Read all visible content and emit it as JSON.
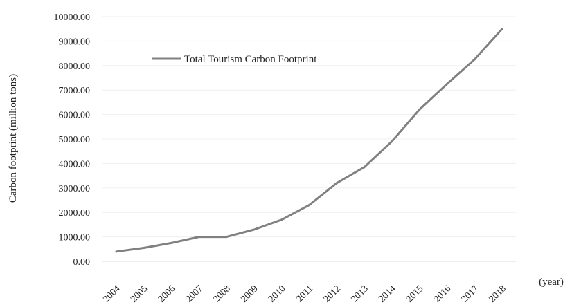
{
  "chart_data": {
    "type": "line",
    "title": "",
    "xlabel": "(year)",
    "ylabel": "Carbon footprint (million tons)",
    "categories": [
      "2004",
      "2005",
      "2006",
      "2007",
      "2008",
      "2009",
      "2010",
      "2011",
      "2012",
      "2013",
      "2014",
      "2015",
      "2016",
      "2017",
      "2018"
    ],
    "ytick_labels": [
      "0.00",
      "1000.00",
      "2000.00",
      "3000.00",
      "4000.00",
      "5000.00",
      "6000.00",
      "7000.00",
      "8000.00",
      "9000.00",
      "10000.00"
    ],
    "ylim": [
      0,
      10000
    ],
    "grid": true,
    "legend_position": "top-left",
    "series": [
      {
        "name": "Total Tourism Carbon Footprint",
        "color": "#808080",
        "values": [
          400,
          550,
          750,
          1000,
          1000,
          1300,
          1700,
          2300,
          3200,
          3850,
          4900,
          6200,
          7250,
          8250,
          9500
        ]
      }
    ]
  }
}
